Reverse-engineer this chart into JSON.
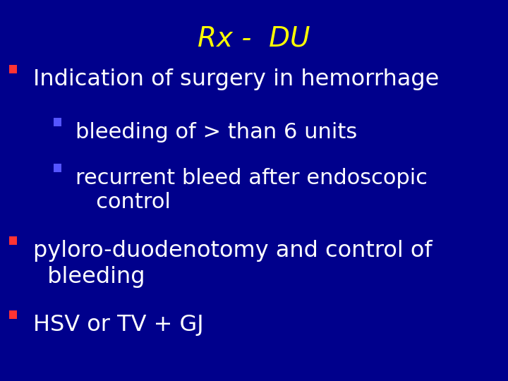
{
  "title": "Rx -  DU",
  "title_color": "#FFFF00",
  "title_fontsize": 28,
  "background_color": "#000099",
  "text_color": "#FFFFFF",
  "items": [
    {
      "text": "Indication of surgery in hemorrhage",
      "level": 0,
      "bullet_color": "#FF3333"
    },
    {
      "text": "bleeding of > than 6 units",
      "level": 1,
      "bullet_color": "#5555FF"
    },
    {
      "text": "recurrent bleed after endoscopic\n   control",
      "level": 1,
      "bullet_color": "#5555FF"
    },
    {
      "text": "pyloro-duodenotomy and control of\n  bleeding",
      "level": 0,
      "bullet_color": "#FF3333"
    },
    {
      "text": "HSV or TV + GJ",
      "level": 0,
      "bullet_color": "#FF3333"
    }
  ],
  "font_size_level0": 23,
  "font_size_level1": 22,
  "figwidth": 7.2,
  "figheight": 5.4,
  "dpi": 100
}
